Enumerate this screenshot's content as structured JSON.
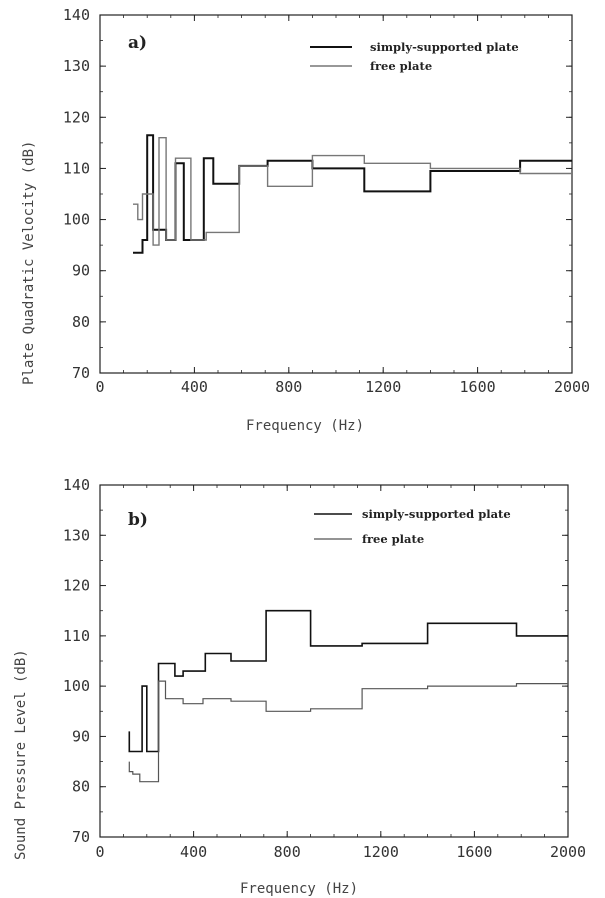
{
  "chart_data": [
    {
      "type": "line",
      "panel_label": "a)",
      "title": "",
      "xlabel": "Frequency  (Hz)",
      "ylabel": "Plate Quadratic Velocity  (dB)",
      "xlim": [
        0,
        2000
      ],
      "ylim": [
        70,
        140
      ],
      "x_ticks": [
        0,
        400,
        800,
        1200,
        1600,
        2000
      ],
      "y_ticks": [
        70,
        80,
        90,
        100,
        110,
        120,
        130,
        140
      ],
      "x_tick_labels": [
        "0",
        "400",
        "800",
        "1200",
        "1600",
        "2000"
      ],
      "y_tick_labels": [
        "70",
        "80",
        "90",
        "100",
        "110",
        "120",
        "130",
        "140"
      ],
      "grid": false,
      "legend_position": "top-right",
      "series": [
        {
          "name": "simply-supported  plate",
          "color": "#111111",
          "width": 2.0,
          "x": [
            140,
            180,
            180,
            200,
            200,
            225,
            225,
            280,
            280,
            320,
            320,
            355,
            355,
            440,
            440,
            480,
            480,
            590,
            590,
            710,
            710,
            900,
            900,
            1120,
            1120,
            1400,
            1400,
            1780,
            1780,
            2000
          ],
          "y": [
            93.5,
            93.5,
            96,
            96,
            116.5,
            116.5,
            98,
            98,
            96,
            96,
            111,
            111,
            96,
            96,
            112,
            112,
            107,
            107,
            110.5,
            110.5,
            111.5,
            111.5,
            110,
            110,
            105.5,
            105.5,
            109.5,
            109.5,
            111.5,
            111.5
          ]
        },
        {
          "name": "free plate",
          "color": "#777777",
          "width": 1.4,
          "x": [
            140,
            160,
            160,
            180,
            180,
            225,
            225,
            250,
            250,
            280,
            280,
            320,
            320,
            385,
            385,
            450,
            450,
            590,
            590,
            710,
            710,
            900,
            900,
            1120,
            1120,
            1400,
            1400,
            1780,
            1780,
            2000
          ],
          "y": [
            103,
            103,
            100,
            100,
            105,
            105,
            95,
            95,
            116,
            116,
            96,
            96,
            112,
            112,
            96,
            96,
            97.5,
            97.5,
            110.5,
            110.5,
            106.5,
            106.5,
            112.5,
            112.5,
            111,
            111,
            110,
            110,
            109,
            109
          ]
        }
      ]
    },
    {
      "type": "line",
      "panel_label": "b)",
      "title": "",
      "xlabel": "Frequency  (Hz)",
      "ylabel": "Sound Pressure Level  (dB)",
      "xlim": [
        0,
        2000
      ],
      "ylim": [
        70,
        140
      ],
      "x_ticks": [
        0,
        400,
        800,
        1200,
        1600,
        2000
      ],
      "y_ticks": [
        70,
        80,
        90,
        100,
        110,
        120,
        130,
        140
      ],
      "x_tick_labels": [
        "0",
        "400",
        "800",
        "1200",
        "1600",
        "2000"
      ],
      "y_tick_labels": [
        "70",
        "80",
        "90",
        "100",
        "110",
        "120",
        "130",
        "140"
      ],
      "grid": false,
      "legend_position": "top-right",
      "series": [
        {
          "name": "simply-supported  plate",
          "color": "#111111",
          "width": 1.6,
          "x": [
            125,
            125,
            140,
            140,
            180,
            180,
            200,
            200,
            250,
            250,
            320,
            320,
            355,
            355,
            450,
            450,
            560,
            560,
            710,
            710,
            900,
            900,
            1120,
            1120,
            1400,
            1400,
            1780,
            1780,
            2000
          ],
          "y": [
            91,
            87,
            87,
            87,
            87,
            100,
            100,
            87,
            87,
            104.5,
            104.5,
            102,
            102,
            103,
            103,
            106.5,
            106.5,
            105,
            105,
            115,
            115,
            108,
            108,
            108.5,
            108.5,
            112.5,
            112.5,
            110,
            110
          ]
        },
        {
          "name": "free plate",
          "color": "#555555",
          "width": 1.2,
          "x": [
            125,
            125,
            140,
            140,
            170,
            170,
            250,
            250,
            280,
            280,
            355,
            355,
            440,
            440,
            560,
            560,
            710,
            710,
            900,
            900,
            1120,
            1120,
            1400,
            1400,
            1780,
            1780,
            2000
          ],
          "y": [
            85,
            83,
            83,
            82.5,
            82.5,
            81,
            81,
            101,
            101,
            97.5,
            97.5,
            96.5,
            96.5,
            97.5,
            97.5,
            97,
            97,
            95,
            95,
            95.5,
            95.5,
            99.5,
            99.5,
            100,
            100,
            100.5,
            100.5
          ]
        }
      ]
    }
  ]
}
